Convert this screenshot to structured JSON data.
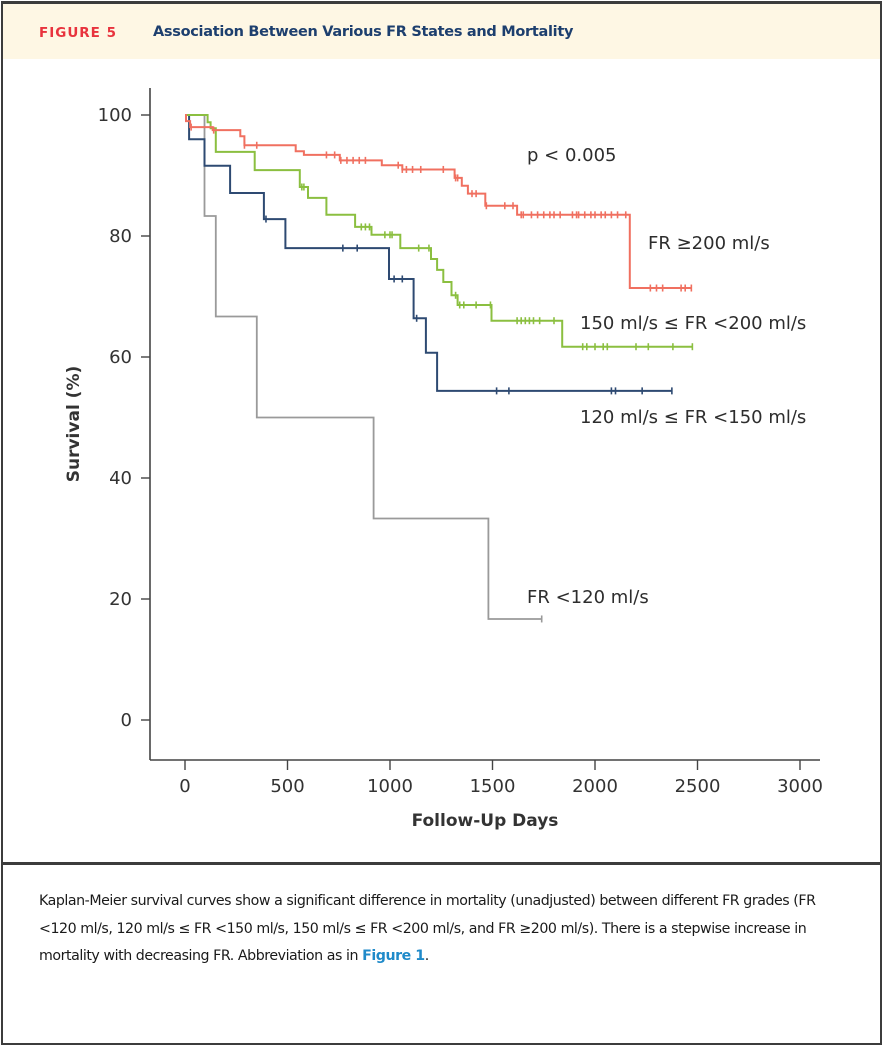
{
  "header": {
    "figure_label": "FIGURE 5",
    "title": "Association Between Various FR States and Mortality"
  },
  "caption": {
    "text": "Kaplan-Meier survival curves show a significant difference in mortality (unadjusted) between different FR grades (FR <120 ml/s, 120 ml/s ≤ FR <150 ml/s, 150 ml/s ≤ FR <200 ml/s, and FR ≥200 ml/s). There is a stepwise increase in mortality with decreasing FR. Abbreviation as in ",
    "link_text": "Figure 1",
    "suffix": "."
  },
  "colors": {
    "header_bg": "#fef7e4",
    "figure_label": "#e8333d",
    "title": "#1d3f6e",
    "link": "#1f8ac9"
  },
  "chart_data": {
    "type": "line",
    "subtype": "kaplan-meier step",
    "title": "Association Between Various FR States and Mortality",
    "xlabel": "Follow-Up Days",
    "ylabel": "Survival (%)",
    "xlim": [
      0,
      3000
    ],
    "ylim": [
      0,
      100
    ],
    "xticks": [
      0,
      500,
      1000,
      1500,
      2000,
      2500,
      3000
    ],
    "yticks": [
      0,
      20,
      40,
      60,
      80,
      100
    ],
    "grid": false,
    "annotation": "p < 0.005",
    "series": [
      {
        "name": "FR ≥200 ml/s",
        "color": "#f07060",
        "steps": [
          [
            0,
            100
          ],
          [
            5,
            99
          ],
          [
            25,
            98
          ],
          [
            135,
            97.5
          ],
          [
            270,
            96.5
          ],
          [
            290,
            95
          ],
          [
            540,
            94
          ],
          [
            580,
            93.4
          ],
          [
            755,
            92.5
          ],
          [
            960,
            91.7
          ],
          [
            1060,
            91
          ],
          [
            1315,
            89.6
          ],
          [
            1350,
            88.3
          ],
          [
            1380,
            87
          ],
          [
            1465,
            85
          ],
          [
            1620,
            83.5
          ],
          [
            2170,
            71.4
          ]
        ],
        "end": 2470,
        "censored": [
          30,
          140,
          290,
          350,
          690,
          730,
          760,
          790,
          820,
          850,
          880,
          1040,
          1060,
          1080,
          1110,
          1150,
          1260,
          1320,
          1330,
          1400,
          1420,
          1470,
          1560,
          1600,
          1640,
          1650,
          1690,
          1720,
          1750,
          1780,
          1800,
          1830,
          1890,
          1910,
          1920,
          1950,
          1980,
          2000,
          2030,
          2050,
          2080,
          2110,
          2150,
          2270,
          2300,
          2330,
          2420,
          2440,
          2470
        ]
      },
      {
        "name": "150 ml/s ≤ FR <200 ml/s",
        "color": "#8bbf40",
        "steps": [
          [
            0,
            100
          ],
          [
            110,
            98.8
          ],
          [
            125,
            97.8
          ],
          [
            150,
            93.9
          ],
          [
            340,
            90.9
          ],
          [
            560,
            88.1
          ],
          [
            600,
            86.3
          ],
          [
            690,
            83.5
          ],
          [
            830,
            81.5
          ],
          [
            910,
            80.2
          ],
          [
            1050,
            78
          ],
          [
            1200,
            76.2
          ],
          [
            1230,
            74.4
          ],
          [
            1260,
            72.4
          ],
          [
            1300,
            70.2
          ],
          [
            1330,
            68.6
          ],
          [
            1495,
            66
          ],
          [
            1840,
            61.7
          ]
        ],
        "end": 2475,
        "censored": [
          570,
          580,
          860,
          880,
          900,
          975,
          1000,
          1010,
          1140,
          1190,
          1320,
          1340,
          1360,
          1420,
          1490,
          1620,
          1640,
          1660,
          1680,
          1700,
          1730,
          1800,
          1940,
          1960,
          2000,
          2040,
          2060,
          2200,
          2260,
          2380,
          2475
        ]
      },
      {
        "name": "120 ml/s ≤ FR <150 ml/s",
        "color": "#2e4a72",
        "steps": [
          [
            0,
            100
          ],
          [
            20,
            96
          ],
          [
            95,
            91.6
          ],
          [
            220,
            87.1
          ],
          [
            385,
            82.8
          ],
          [
            490,
            78
          ],
          [
            995,
            72.9
          ],
          [
            1115,
            66.4
          ],
          [
            1175,
            60.7
          ],
          [
            1230,
            54.4
          ]
        ],
        "end": 2375,
        "censored": [
          395,
          770,
          840,
          1020,
          1060,
          1130,
          1520,
          1580,
          2080,
          2100,
          2230,
          2375
        ]
      },
      {
        "name": "FR <120 ml/s",
        "color": "#9a9a9a",
        "steps": [
          [
            0,
            100
          ],
          [
            95,
            83.3
          ],
          [
            150,
            66.7
          ],
          [
            350,
            50
          ],
          [
            920,
            33.3
          ],
          [
            1480,
            16.7
          ]
        ],
        "end": 1740,
        "censored": [
          1740
        ]
      }
    ],
    "legend": "inline labels at curve ends"
  }
}
